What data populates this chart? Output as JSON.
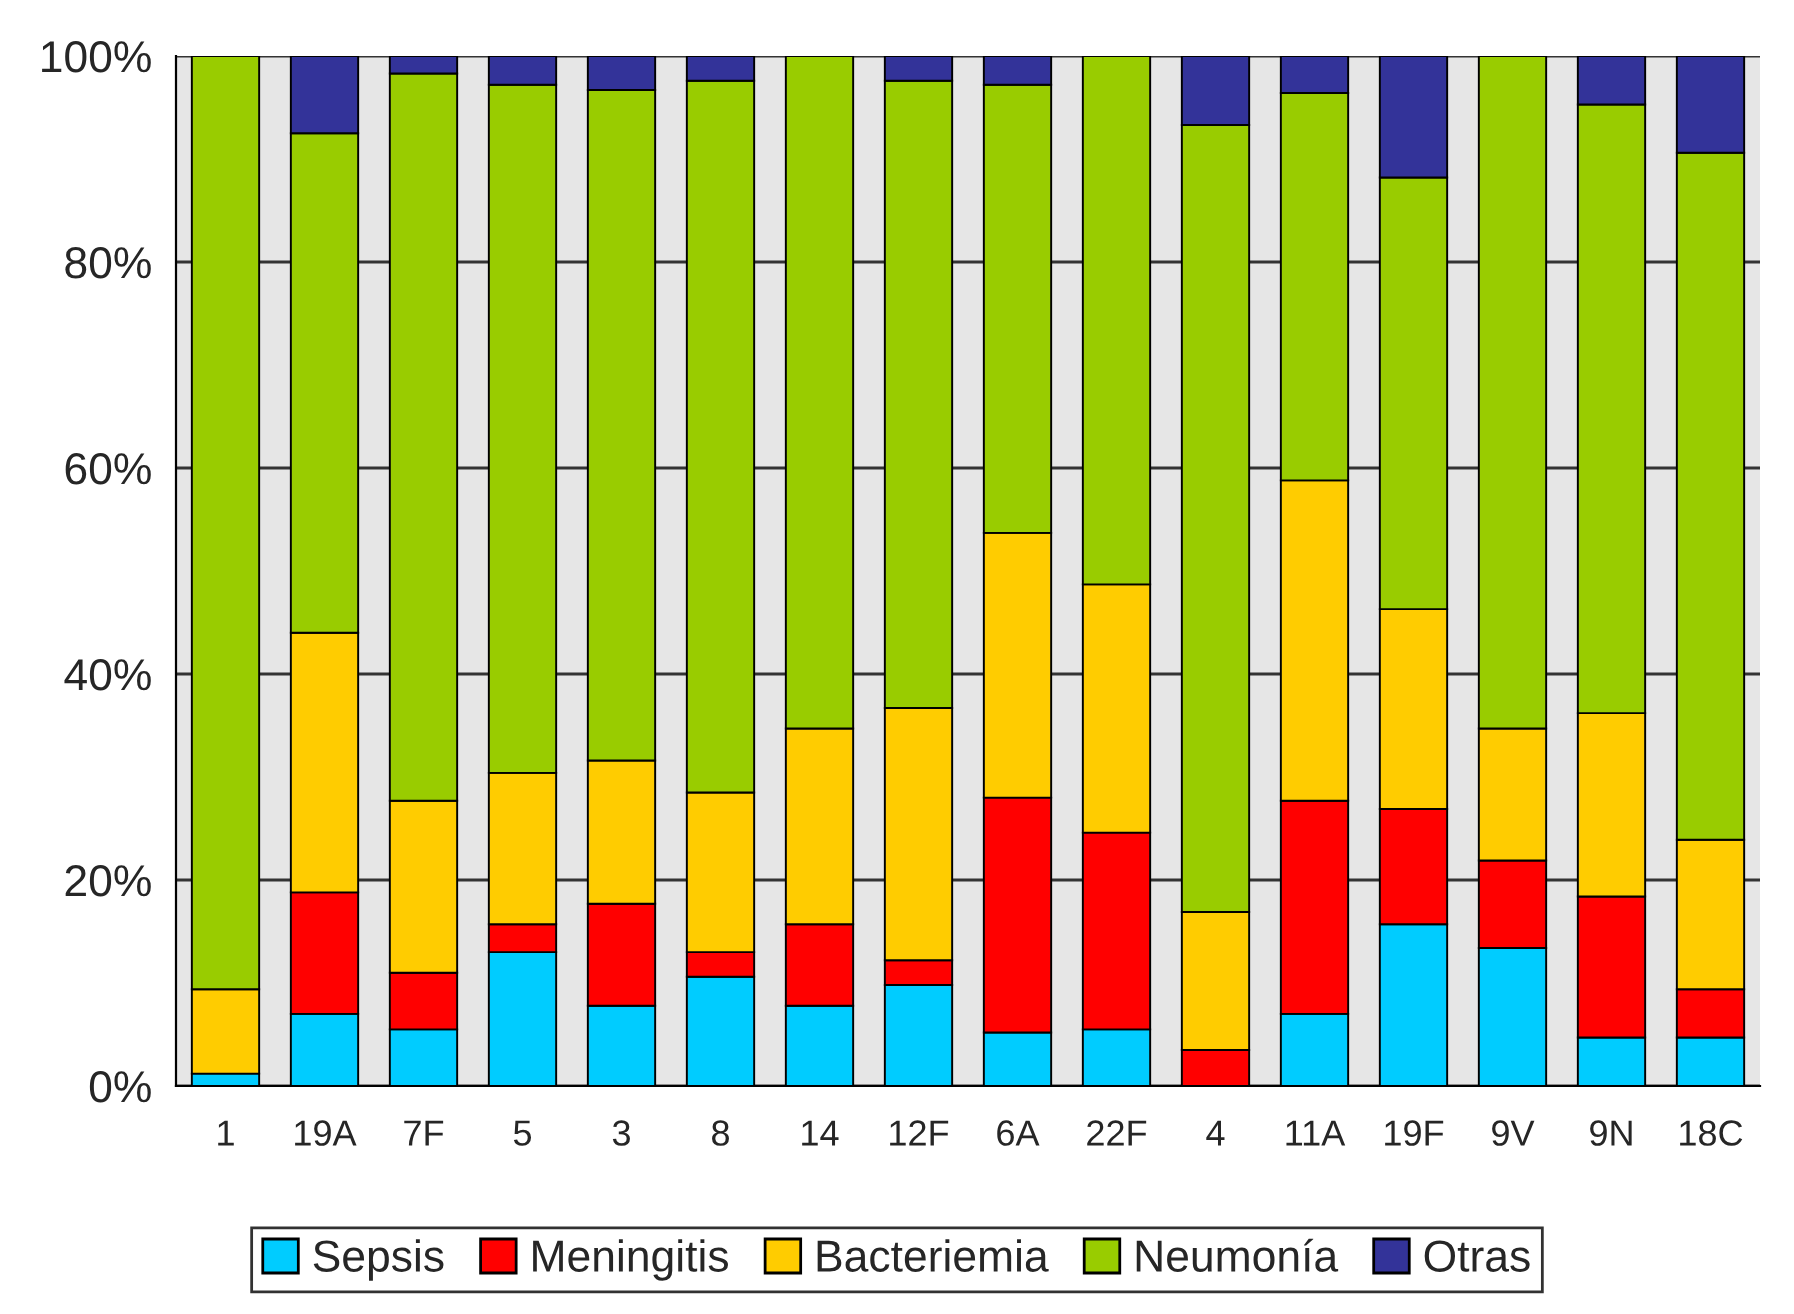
{
  "chart_data": {
    "type": "bar",
    "stacked": true,
    "categories": [
      "1",
      "19A",
      "7F",
      "5",
      "3",
      "8",
      "14",
      "12F",
      "6A",
      "22F",
      "4",
      "11A",
      "19F",
      "9V",
      "9N",
      "18C"
    ],
    "series": [
      {
        "name": "Sepsis",
        "color": "#00ccff",
        "values": [
          1.2,
          7,
          5.5,
          13,
          7.8,
          10.6,
          7.8,
          9.8,
          5.2,
          5.5,
          0,
          7,
          15.7,
          13.4,
          4.7,
          4.7
        ]
      },
      {
        "name": "Meningitis",
        "color": "#ff0000",
        "values": [
          0,
          11.8,
          5.5,
          2.7,
          9.9,
          2.4,
          7.9,
          2.4,
          22.8,
          19.1,
          3.5,
          20.7,
          11.2,
          8.5,
          13.7,
          4.7
        ]
      },
      {
        "name": "Bacteriemia",
        "color": "#ffcc00",
        "values": [
          8.2,
          25.2,
          16.7,
          14.7,
          13.9,
          15.5,
          19,
          24.5,
          25.7,
          24.1,
          13.4,
          31.1,
          19.4,
          12.8,
          17.8,
          14.5
        ]
      },
      {
        "name": "Neumonía",
        "color": "#99cc00",
        "values": [
          90.6,
          48.5,
          70.6,
          66.8,
          65.1,
          69.1,
          65.3,
          60.9,
          43.5,
          51.3,
          76.4,
          37.6,
          41.9,
          65.3,
          59.1,
          66.7
        ]
      },
      {
        "name": "Otras",
        "color": "#333399",
        "values": [
          0,
          7.5,
          1.7,
          2.8,
          3.3,
          2.4,
          0,
          2.4,
          2.8,
          0,
          6.7,
          3.6,
          11.8,
          0,
          4.7,
          9.4
        ]
      }
    ],
    "ylim": [
      0,
      100
    ],
    "yticks": [
      {
        "value": 0,
        "label": "0%"
      },
      {
        "value": 20,
        "label": "20%"
      },
      {
        "value": 40,
        "label": "40%"
      },
      {
        "value": 60,
        "label": "60%"
      },
      {
        "value": 80,
        "label": "80%"
      },
      {
        "value": 100,
        "label": "100%"
      }
    ],
    "grid": "y",
    "legend": "bottom"
  }
}
